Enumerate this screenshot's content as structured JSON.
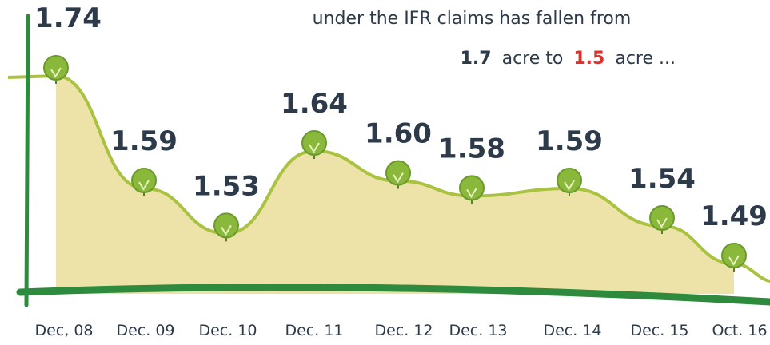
{
  "chart_data": {
    "type": "area",
    "categories": [
      "Dec, 08",
      "Dec. 09",
      "Dec. 10",
      "Dec. 11",
      "Dec. 12",
      "Dec. 13",
      "Dec. 14",
      "Dec. 15",
      "Oct. 16"
    ],
    "values": [
      1.74,
      1.59,
      1.53,
      1.64,
      1.6,
      1.58,
      1.59,
      1.54,
      1.49
    ],
    "value_labels": [
      "1.74",
      "1.59",
      "1.53",
      "1.64",
      "1.60",
      "1.58",
      "1.59",
      "1.54",
      "1.49"
    ],
    "color": "#a9c23f",
    "fill": "#e8dc93",
    "marker_color": "#8ab83a",
    "annotation": {
      "line1": "under the IFR claims has fallen from",
      "from_value": "1.7",
      "unit_1": "acre to",
      "to_value": "1.5",
      "unit_2": "acre ..."
    }
  }
}
